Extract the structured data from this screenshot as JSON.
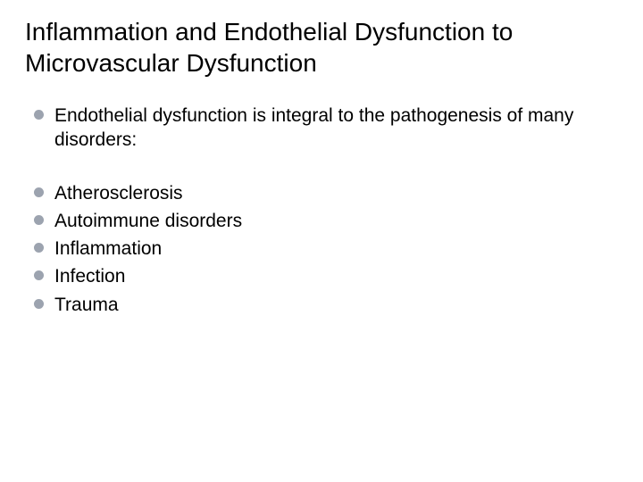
{
  "title": "Inflammation and Endothelial Dysfunction to Microvascular Dysfunction",
  "bullet_color": "#9ca3af",
  "text_color": "#000000",
  "background_color": "#ffffff",
  "title_fontsize": 28,
  "body_fontsize": 21,
  "intro": {
    "text": "Endothelial dysfunction is integral to the pathogenesis of many disorders:"
  },
  "items": [
    {
      "text": "Atherosclerosis"
    },
    {
      "text": "Autoimmune disorders"
    },
    {
      "text": "Inflammation"
    },
    {
      "text": "Infection"
    },
    {
      "text": "Trauma"
    }
  ]
}
